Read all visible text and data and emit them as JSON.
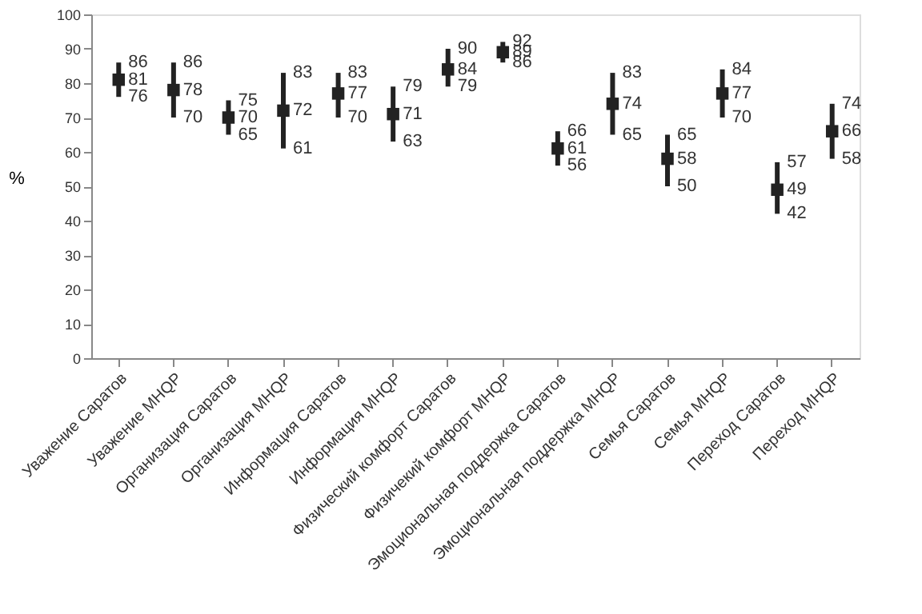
{
  "chart_data": {
    "type": "scatter",
    "ylabel": "%",
    "categories": [
      "Уважение Саратов",
      "Уважение МНQP",
      "Организация Саратов",
      "Организация МНQP",
      "Информация Саратов",
      "Информация МНQP",
      "Физический комфорт Саратов",
      "Физичекий комфорт МНQP",
      "Эмоциональная поддержка Саратов",
      "Эмоциональная поддержка МНQP",
      "Семья Саратов",
      "Семья МНQP",
      "Переход Саратов",
      "Переход МНQP"
    ],
    "series": [
      {
        "color": "#222222",
        "values": [
          81,
          78,
          70,
          72,
          77,
          71,
          84,
          89,
          61,
          74,
          58,
          77,
          49,
          66
        ],
        "errors": [
          [
            76,
            86
          ],
          [
            70,
            86
          ],
          [
            65,
            75
          ],
          [
            61,
            83
          ],
          [
            70,
            83
          ],
          [
            63,
            79
          ],
          [
            79,
            90
          ],
          [
            86,
            92
          ],
          [
            56,
            66
          ],
          [
            65,
            83
          ],
          [
            50,
            65
          ],
          [
            70,
            84
          ],
          [
            42,
            57
          ],
          [
            58,
            74
          ]
        ]
      }
    ],
    "annotations": [
      {
        "text": "76",
        "x": "Уважение Саратов",
        "y": 76
      },
      {
        "text": "86",
        "x": "Уважение Саратов",
        "y": 86
      },
      {
        "text": "70",
        "x": "Уважение МНQP",
        "y": 70
      },
      {
        "text": "86",
        "x": "Уважение МНQP",
        "y": 86
      },
      {
        "text": "65",
        "x": "Организация Саратов",
        "y": 65
      },
      {
        "text": "75",
        "x": "Организация Саратов",
        "y": 75
      },
      {
        "text": "61",
        "x": "Организация МНQP",
        "y": 61
      },
      {
        "text": "83",
        "x": "Организация МНQP",
        "y": 83
      },
      {
        "text": "70",
        "x": "Информация Саратов",
        "y": 70
      },
      {
        "text": "83",
        "x": "Информация Саратов",
        "y": 83
      },
      {
        "text": "63",
        "x": "Информация МНQP",
        "y": 63
      },
      {
        "text": "79",
        "x": "Информация МНQP",
        "y": 79
      },
      {
        "text": "79",
        "x": "Физический комфорт Саратов",
        "y": 79
      },
      {
        "text": "90",
        "x": "Физический комфорт Саратов",
        "y": 90
      },
      {
        "text": "86",
        "x": "Физичекий комфорт МНQP",
        "y": 86
      },
      {
        "text": "92",
        "x": "Физичекий комфорт МНQP",
        "y": 92
      },
      {
        "text": "56",
        "x": "Эмоциональная поддержка Саратов",
        "y": 56
      },
      {
        "text": "66",
        "x": "Эмоциональная поддержка Саратов",
        "y": 66
      },
      {
        "text": "65",
        "x": "Эмоциональная поддержка МНQP",
        "y": 65
      },
      {
        "text": "83",
        "x": "Эмоциональная поддержка МНQP",
        "y": 83
      },
      {
        "text": "50",
        "x": "Семья Саратов",
        "y": 50
      },
      {
        "text": "65",
        "x": "Семья Саратов",
        "y": 65
      },
      {
        "text": "70",
        "x": "Семья МНQP",
        "y": 70
      },
      {
        "text": "84",
        "x": "Семья МНQP",
        "y": 84
      },
      {
        "text": "42",
        "x": "Переход Саратов",
        "y": 42
      },
      {
        "text": "57",
        "x": "Переход Саратов",
        "y": 57
      },
      {
        "text": "58",
        "x": "Переход МНQP",
        "y": 58
      },
      {
        "text": "74",
        "x": "Переход МНQP",
        "y": 74
      }
    ],
    "ylim": [
      0,
      100
    ],
    "yticks": [
      0,
      10,
      20,
      30,
      40,
      50,
      60,
      70,
      80,
      90,
      100
    ],
    "marker": "square",
    "data_labels": true,
    "grid": false,
    "legend": false
  }
}
